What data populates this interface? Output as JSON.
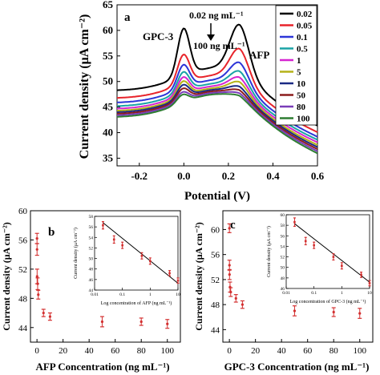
{
  "chart_data": [
    {
      "panel": "a",
      "type": "line",
      "ylabel": "Current density (μA cm⁻²)",
      "xlabel": "Potential (V)",
      "xlim": [
        -0.3,
        0.6
      ],
      "ylim": [
        33.5,
        65
      ],
      "xticks": [
        -0.2,
        0.0,
        0.2,
        0.4,
        0.6
      ],
      "xtick_labels": [
        "-0.2",
        "0.0",
        "0.2",
        "0.4",
        "0.6"
      ],
      "yticks": [
        35,
        40,
        45,
        50,
        55,
        60,
        65
      ],
      "legend_position": "right",
      "annotations": {
        "gpc3": "GPC-3",
        "afp": "AFP",
        "conc_high": "0.02 ng mL⁻¹",
        "conc_low": "100 ng mL⁻¹"
      },
      "series": [
        {
          "name": "0.02",
          "color": "#000000",
          "gpc3_peak": 59.8,
          "afp_peak": 56.2,
          "baseline": 48.2,
          "valley": 46.0,
          "right_end": 41.9
        },
        {
          "name": "0.05",
          "color": "#e8242b",
          "gpc3_peak": 54.7,
          "afp_peak": 52.3,
          "baseline": 46.7,
          "valley": 45.3,
          "right_end": 40.6
        },
        {
          "name": "0.1",
          "color": "#2d35d8",
          "gpc3_peak": 52.7,
          "afp_peak": 50.3,
          "baseline": 45.8,
          "valley": 45.1,
          "right_end": 39.7
        },
        {
          "name": "0.5",
          "color": "#1aa3a6",
          "gpc3_peak": 51.3,
          "afp_peak": 49.2,
          "baseline": 45.1,
          "valley": 45.0,
          "right_end": 39.1
        },
        {
          "name": "1",
          "color": "#d625d0",
          "gpc3_peak": 50.3,
          "afp_peak": 48.4,
          "baseline": 44.6,
          "valley": 44.9,
          "right_end": 38.6
        },
        {
          "name": "5",
          "color": "#b5b218",
          "gpc3_peak": 49.5,
          "afp_peak": 47.8,
          "baseline": 44.2,
          "valley": 44.8,
          "right_end": 38.1
        },
        {
          "name": "10",
          "color": "#1a2a84",
          "gpc3_peak": 48.8,
          "afp_peak": 47.1,
          "baseline": 43.9,
          "valley": 44.7,
          "right_end": 37.7
        },
        {
          "name": "50",
          "color": "#8b1c1c",
          "gpc3_peak": 48.1,
          "afp_peak": 46.6,
          "baseline": 43.6,
          "valley": 44.6,
          "right_end": 37.3
        },
        {
          "name": "80",
          "color": "#7a3db8",
          "gpc3_peak": 47.4,
          "afp_peak": 46.2,
          "baseline": 43.3,
          "valley": 44.5,
          "right_end": 36.9
        },
        {
          "name": "100",
          "color": "#2e7d32",
          "gpc3_peak": 46.9,
          "afp_peak": 45.9,
          "baseline": 43.0,
          "valley": 44.4,
          "right_end": 36.5
        }
      ]
    },
    {
      "panel": "b",
      "type": "scatter",
      "ylabel": "Current density (μA cm⁻²)",
      "xlabel": "AFP Concentration (ng mL⁻¹)",
      "xlim": [
        -5,
        110
      ],
      "ylim": [
        42,
        60
      ],
      "xticks": [
        0,
        20,
        40,
        60,
        80,
        100
      ],
      "yticks": [
        44,
        48,
        52,
        56,
        60
      ],
      "color": "#d32f2f",
      "points": [
        {
          "x": 0.02,
          "y": 56.2,
          "err": 0.7
        },
        {
          "x": 0.05,
          "y": 54.7,
          "err": 0.8
        },
        {
          "x": 0.1,
          "y": 51.0,
          "err": 1.0
        },
        {
          "x": 0.5,
          "y": 50.0,
          "err": 0.8
        },
        {
          "x": 1,
          "y": 48.5,
          "err": 0.6
        },
        {
          "x": 5,
          "y": 46.0,
          "err": 0.5
        },
        {
          "x": 10,
          "y": 45.5,
          "err": 0.5
        },
        {
          "x": 50,
          "y": 44.8,
          "err": 0.7
        },
        {
          "x": 80,
          "y": 44.8,
          "err": 0.5
        },
        {
          "x": 100,
          "y": 44.5,
          "err": 0.6
        }
      ],
      "inset": {
        "type": "scatter",
        "xlabel": "Log concentration of AFP (ng mL⁻¹)",
        "ylabel": "Current density (μA cm⁻²)",
        "xscale": "log",
        "xlim": [
          0.01,
          10
        ],
        "ylim": [
          44,
          58
        ],
        "xtick_labels": [
          "0.01",
          "0.1",
          "1",
          "10"
        ],
        "yticks": [
          44,
          46,
          48,
          50,
          52,
          54,
          56,
          58
        ],
        "points": [
          {
            "x": 0.02,
            "y": 56.3,
            "err": 0.7
          },
          {
            "x": 0.05,
            "y": 53.6,
            "err": 0.7
          },
          {
            "x": 0.1,
            "y": 52.5,
            "err": 0.6
          },
          {
            "x": 0.5,
            "y": 50.5,
            "err": 0.6
          },
          {
            "x": 1,
            "y": 49.5,
            "err": 0.6
          },
          {
            "x": 5,
            "y": 47.2,
            "err": 0.5
          },
          {
            "x": 10,
            "y": 45.8,
            "err": 0.5
          }
        ],
        "fit": {
          "x": [
            0.02,
            10
          ],
          "y": [
            56.8,
            45.3
          ]
        }
      }
    },
    {
      "panel": "c",
      "type": "scatter",
      "ylabel": "Current density (μA cm⁻²)",
      "xlabel": "GPC-3 Concentration (ng mL⁻¹)",
      "xlim": [
        -5,
        110
      ],
      "ylim": [
        42,
        63
      ],
      "xticks": [
        0,
        20,
        40,
        60,
        80,
        100
      ],
      "yticks": [
        44,
        48,
        52,
        56,
        60
      ],
      "color": "#d32f2f",
      "points": [
        {
          "x": 0.02,
          "y": 60.2,
          "err": 0.7
        },
        {
          "x": 0.05,
          "y": 54.3,
          "err": 0.8
        },
        {
          "x": 0.1,
          "y": 52.8,
          "err": 0.8
        },
        {
          "x": 0.5,
          "y": 50.8,
          "err": 0.8
        },
        {
          "x": 1,
          "y": 50.0,
          "err": 0.7
        },
        {
          "x": 5,
          "y": 49.0,
          "err": 0.6
        },
        {
          "x": 10,
          "y": 48.0,
          "err": 0.6
        },
        {
          "x": 50,
          "y": 47.0,
          "err": 0.8
        },
        {
          "x": 80,
          "y": 46.8,
          "err": 0.7
        },
        {
          "x": 100,
          "y": 46.6,
          "err": 0.8
        }
      ],
      "inset": {
        "type": "scatter",
        "xlabel": "Log concentration of GPC-3 (ng mL⁻¹)",
        "ylabel": "Current density (μA cm⁻²)",
        "xscale": "log",
        "xlim": [
          0.01,
          10
        ],
        "ylim": [
          46,
          60
        ],
        "xtick_labels": [
          "0.01",
          "0.1",
          "1",
          "10"
        ],
        "yticks": [
          46,
          48,
          50,
          52,
          54,
          56,
          58,
          60
        ],
        "points": [
          {
            "x": 0.02,
            "y": 58.6,
            "err": 0.8
          },
          {
            "x": 0.05,
            "y": 55.0,
            "err": 0.7
          },
          {
            "x": 0.1,
            "y": 54.2,
            "err": 0.6
          },
          {
            "x": 0.5,
            "y": 52.0,
            "err": 0.6
          },
          {
            "x": 1,
            "y": 50.3,
            "err": 0.6
          },
          {
            "x": 5,
            "y": 48.6,
            "err": 0.5
          },
          {
            "x": 10,
            "y": 47.0,
            "err": 0.5
          }
        ],
        "fit": {
          "x": [
            0.02,
            10
          ],
          "y": [
            58.3,
            47.2
          ]
        }
      }
    }
  ]
}
